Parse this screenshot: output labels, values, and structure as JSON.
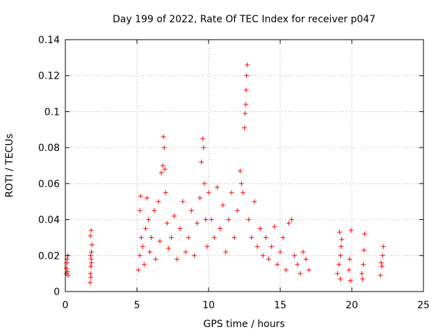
{
  "chart_data": {
    "type": "scatter",
    "title": "Day 199 of 2022, Rate Of TEC Index for receiver p047",
    "xlabel": "GPS time / hours",
    "ylabel": "ROTI / TECUs",
    "xlim": [
      0,
      25
    ],
    "ylim": [
      0,
      0.14
    ],
    "xticks": [
      "0",
      "5",
      "10",
      "15",
      "20",
      "25"
    ],
    "yticks": [
      "0",
      "0.02",
      "0.04",
      "0.06",
      "0.08",
      "0.1",
      "0.12",
      "0.14"
    ],
    "grid": true,
    "marker": "+",
    "color": "#ff0000",
    "series": [
      {
        "points": [
          [
            0.05,
            0.01
          ],
          [
            0.08,
            0.013
          ],
          [
            0.1,
            0.016
          ],
          [
            0.12,
            0.018
          ],
          [
            0.15,
            0.011
          ],
          [
            0.18,
            0.02
          ],
          [
            0.2,
            0.009
          ],
          [
            1.72,
            0.005
          ],
          [
            1.75,
            0.01
          ],
          [
            1.78,
            0.014
          ],
          [
            1.8,
            0.018
          ],
          [
            1.82,
            0.022
          ],
          [
            1.85,
            0.026
          ],
          [
            1.75,
            0.031
          ],
          [
            1.8,
            0.034
          ],
          [
            1.78,
            0.008
          ],
          [
            1.82,
            0.016
          ],
          [
            1.76,
            0.02
          ],
          [
            5.1,
            0.012
          ],
          [
            5.2,
            0.02
          ],
          [
            5.3,
            0.03
          ],
          [
            5.2,
            0.045
          ],
          [
            5.25,
            0.053
          ],
          [
            5.4,
            0.025
          ],
          [
            5.5,
            0.015
          ],
          [
            5.6,
            0.035
          ],
          [
            5.7,
            0.052
          ],
          [
            5.8,
            0.04
          ],
          [
            5.9,
            0.022
          ],
          [
            6.0,
            0.03
          ],
          [
            6.2,
            0.045
          ],
          [
            6.3,
            0.018
          ],
          [
            6.5,
            0.05
          ],
          [
            6.6,
            0.028
          ],
          [
            6.7,
            0.066
          ],
          [
            6.8,
            0.07
          ],
          [
            6.85,
            0.086
          ],
          [
            6.9,
            0.08
          ],
          [
            6.95,
            0.068
          ],
          [
            7.0,
            0.055
          ],
          [
            7.1,
            0.038
          ],
          [
            7.2,
            0.024
          ],
          [
            7.4,
            0.03
          ],
          [
            7.6,
            0.042
          ],
          [
            7.8,
            0.018
          ],
          [
            8.0,
            0.035
          ],
          [
            8.2,
            0.05
          ],
          [
            8.4,
            0.022
          ],
          [
            8.6,
            0.03
          ],
          [
            8.8,
            0.045
          ],
          [
            9.0,
            0.02
          ],
          [
            9.2,
            0.038
          ],
          [
            9.4,
            0.052
          ],
          [
            9.5,
            0.072
          ],
          [
            9.6,
            0.085
          ],
          [
            9.65,
            0.08
          ],
          [
            9.7,
            0.06
          ],
          [
            9.8,
            0.04
          ],
          [
            9.9,
            0.025
          ],
          [
            10.0,
            0.055
          ],
          [
            10.2,
            0.04
          ],
          [
            10.4,
            0.03
          ],
          [
            10.6,
            0.058
          ],
          [
            10.8,
            0.035
          ],
          [
            11.0,
            0.048
          ],
          [
            11.2,
            0.022
          ],
          [
            11.4,
            0.04
          ],
          [
            11.6,
            0.055
          ],
          [
            11.8,
            0.03
          ],
          [
            12.0,
            0.045
          ],
          [
            12.2,
            0.067
          ],
          [
            12.3,
            0.06
          ],
          [
            12.4,
            0.055
          ],
          [
            12.5,
            0.091
          ],
          [
            12.55,
            0.099
          ],
          [
            12.6,
            0.104
          ],
          [
            12.62,
            0.112
          ],
          [
            12.65,
            0.12
          ],
          [
            12.7,
            0.126
          ],
          [
            12.8,
            0.04
          ],
          [
            13.0,
            0.03
          ],
          [
            13.2,
            0.05
          ],
          [
            13.4,
            0.025
          ],
          [
            13.6,
            0.035
          ],
          [
            13.8,
            0.02
          ],
          [
            14.0,
            0.03
          ],
          [
            14.2,
            0.018
          ],
          [
            14.4,
            0.025
          ],
          [
            14.6,
            0.036
          ],
          [
            14.8,
            0.015
          ],
          [
            15.0,
            0.022
          ],
          [
            15.2,
            0.03
          ],
          [
            15.4,
            0.012
          ],
          [
            15.6,
            0.038
          ],
          [
            15.8,
            0.04
          ],
          [
            16.0,
            0.02
          ],
          [
            16.2,
            0.015
          ],
          [
            16.4,
            0.01
          ],
          [
            16.6,
            0.022
          ],
          [
            16.8,
            0.018
          ],
          [
            17.0,
            0.012
          ],
          [
            19.0,
            0.01
          ],
          [
            19.1,
            0.015
          ],
          [
            19.2,
            0.02
          ],
          [
            19.25,
            0.025
          ],
          [
            19.3,
            0.029
          ],
          [
            19.15,
            0.033
          ],
          [
            19.2,
            0.007
          ],
          [
            19.8,
            0.012
          ],
          [
            19.85,
            0.018
          ],
          [
            19.9,
            0.006
          ],
          [
            19.95,
            0.034
          ],
          [
            20.7,
            0.01
          ],
          [
            20.8,
            0.015
          ],
          [
            20.85,
            0.023
          ],
          [
            20.9,
            0.032
          ],
          [
            20.75,
            0.007
          ],
          [
            22.0,
            0.009
          ],
          [
            22.1,
            0.014
          ],
          [
            22.15,
            0.02
          ],
          [
            22.2,
            0.025
          ],
          [
            22.05,
            0.016
          ]
        ]
      }
    ]
  }
}
